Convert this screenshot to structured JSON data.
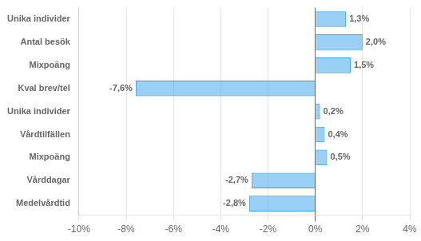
{
  "chart_data": {
    "type": "bar",
    "orientation": "horizontal",
    "categories": [
      "Unika individer",
      "Antal besök",
      "Mixpoäng",
      "Kval brev/tel",
      "Unika individer",
      "Vårdtilfällen",
      "Mixpoäng",
      "Vårddagar",
      "Medelvårdtid"
    ],
    "values": [
      1.3,
      2.0,
      1.5,
      -7.6,
      0.2,
      0.4,
      0.5,
      -2.7,
      -2.8
    ],
    "value_labels": [
      "1,3%",
      "2,0%",
      "1,5%",
      "-7,6%",
      "0,2%",
      "0,4%",
      "0,5%",
      "-2,7%",
      "-2,8%"
    ],
    "data_labels": true,
    "xlim": [
      -10,
      4
    ],
    "xticks": [
      {
        "value": -10,
        "label": "-10%"
      },
      {
        "value": -8,
        "label": "-8%"
      },
      {
        "value": -6,
        "label": "-6%"
      },
      {
        "value": -4,
        "label": "-4%"
      },
      {
        "value": -2,
        "label": "-2%"
      },
      {
        "value": 0,
        "label": "0%"
      },
      {
        "value": 2,
        "label": "2%"
      },
      {
        "value": 4,
        "label": "4%"
      }
    ],
    "grid": true
  }
}
